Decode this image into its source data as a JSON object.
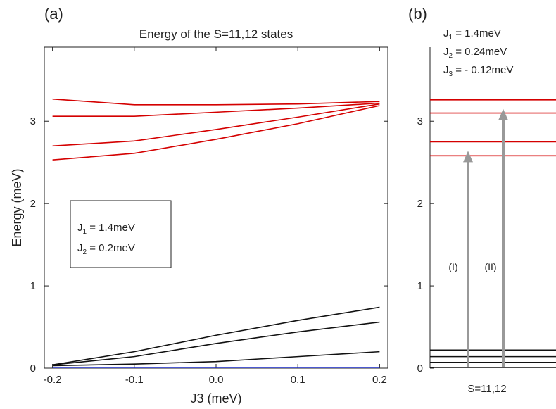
{
  "chart_data": [
    {
      "panel": "(a)",
      "type": "line",
      "title": "Energy of the S=11,12 states",
      "xlabel": "J3 (meV)",
      "ylabel": "Energy (meV)",
      "xlim": [
        -0.21,
        0.21
      ],
      "ylim": [
        0,
        3.9
      ],
      "xticks": [
        "-0.2",
        "-0.1",
        "0.0",
        "0.1",
        "0.2"
      ],
      "yticks": [
        "0",
        "1",
        "2",
        "3"
      ],
      "legend": {
        "placement": "center-left",
        "lines": [
          [
            "J",
            "1",
            " = 1.4meV"
          ],
          [
            "J",
            "2",
            " = 0.2meV"
          ]
        ]
      },
      "series": [
        {
          "color": "#d40000",
          "x": [
            -0.2,
            -0.1,
            0.0,
            0.1,
            0.2
          ],
          "y": [
            3.27,
            3.2,
            3.2,
            3.21,
            3.24
          ]
        },
        {
          "color": "#d40000",
          "x": [
            -0.2,
            -0.1,
            0.0,
            0.1,
            0.2
          ],
          "y": [
            3.06,
            3.06,
            3.11,
            3.16,
            3.22
          ]
        },
        {
          "color": "#d40000",
          "x": [
            -0.2,
            -0.1,
            0.0,
            0.1,
            0.2
          ],
          "y": [
            2.7,
            2.76,
            2.9,
            3.05,
            3.21
          ]
        },
        {
          "color": "#d40000",
          "x": [
            -0.2,
            -0.1,
            0.0,
            0.1,
            0.2
          ],
          "y": [
            2.53,
            2.61,
            2.78,
            2.97,
            3.19
          ]
        },
        {
          "color": "#111111",
          "x": [
            -0.2,
            -0.1,
            0.0,
            0.1,
            0.2
          ],
          "y": [
            0.04,
            0.2,
            0.4,
            0.58,
            0.74
          ]
        },
        {
          "color": "#111111",
          "x": [
            -0.2,
            -0.1,
            0.0,
            0.1,
            0.2
          ],
          "y": [
            0.04,
            0.14,
            0.3,
            0.44,
            0.56
          ]
        },
        {
          "color": "#111111",
          "x": [
            -0.2,
            -0.1,
            0.0,
            0.1,
            0.2
          ],
          "y": [
            0.03,
            0.05,
            0.08,
            0.14,
            0.2
          ]
        },
        {
          "color": "#1020c0",
          "x": [
            -0.2,
            -0.1,
            0.0,
            0.1,
            0.2
          ],
          "y": [
            0.0,
            0.0,
            0.0,
            0.0,
            0.0
          ]
        }
      ]
    },
    {
      "panel": "(b)",
      "type": "line",
      "title": "",
      "xlabel": "S=11,12",
      "ylabel": "",
      "ylim": [
        0,
        3.9
      ],
      "yticks": [
        "0",
        "1",
        "2",
        "3"
      ],
      "params": [
        [
          "J",
          "1",
          " = 1.4meV"
        ],
        [
          "J",
          "2",
          " = 0.24meV"
        ],
        [
          "J",
          "3",
          " = - 0.12meV"
        ]
      ],
      "levels_red": [
        3.26,
        3.1,
        2.75,
        2.58
      ],
      "levels_black": [
        0.22,
        0.14,
        0.07,
        0.0
      ],
      "arrows": [
        {
          "label": "(I)",
          "from": 0.0,
          "to": 2.64
        },
        {
          "label": "(II)",
          "from": 0.0,
          "to": 3.15
        }
      ],
      "colors": {
        "red": "#d40000",
        "black": "#111111",
        "arrow": "#999999"
      }
    }
  ]
}
